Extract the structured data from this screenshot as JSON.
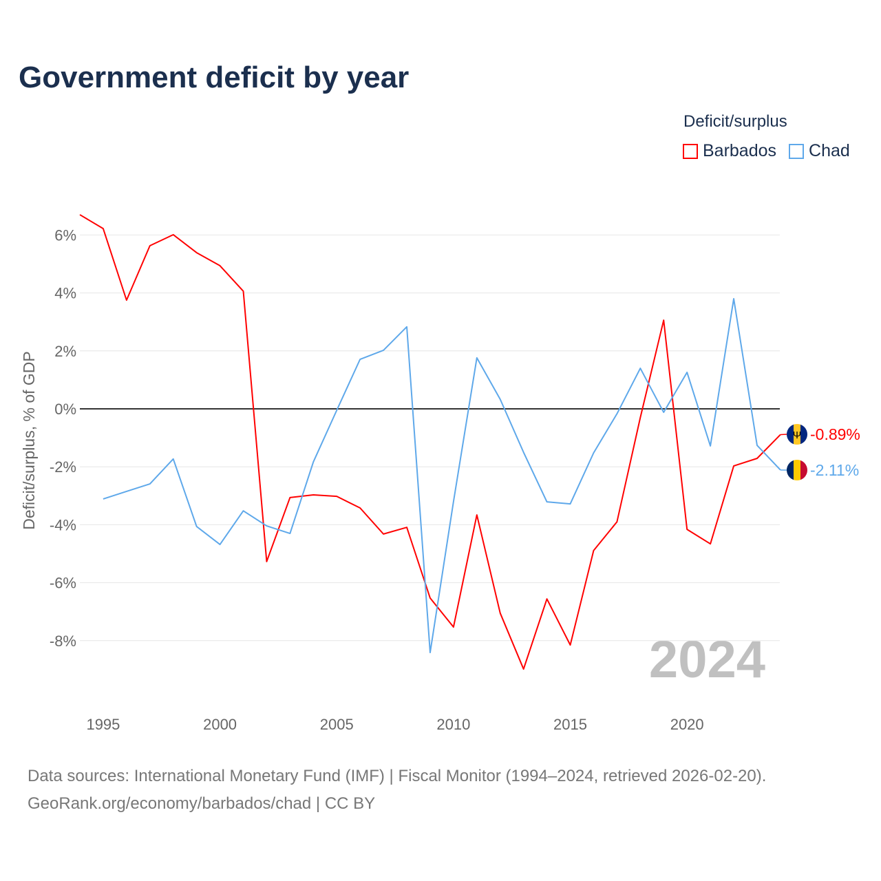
{
  "chart_data": {
    "type": "line",
    "title": "Government deficit by year",
    "ylabel": "Deficit/surplus, % of GDP",
    "xlabel": "",
    "legend_title": "Deficit/surplus",
    "legend_placement": "top-right",
    "ylim": [
      -10,
      7
    ],
    "xlim": [
      1994,
      2024
    ],
    "yticks": [
      6,
      4,
      2,
      0,
      -2,
      -4,
      -6,
      -8
    ],
    "ytick_labels": [
      "6%",
      "4%",
      "2%",
      "0%",
      "-2%",
      "-4%",
      "-6%",
      "-8%"
    ],
    "xticks": [
      1995,
      2000,
      2005,
      2010,
      2015,
      2020
    ],
    "xtick_labels": [
      "1995",
      "2000",
      "2005",
      "2010",
      "2015",
      "2020"
    ],
    "grid": true,
    "year_watermark": "2024",
    "series": [
      {
        "name": "Barbados",
        "color": "#ff0000",
        "end_label": "-0.89%",
        "x": [
          1994,
          1995,
          1996,
          1997,
          1998,
          1999,
          2000,
          2001,
          2002,
          2003,
          2004,
          2005,
          2006,
          2007,
          2008,
          2009,
          2010,
          2011,
          2012,
          2013,
          2014,
          2015,
          2016,
          2017,
          2018,
          2019,
          2020,
          2021,
          2022,
          2023,
          2024
        ],
        "values": [
          6.7,
          6.22,
          3.75,
          5.63,
          6.01,
          5.39,
          4.94,
          4.06,
          -5.27,
          -3.06,
          -2.97,
          -3.02,
          -3.42,
          -4.32,
          -4.09,
          -6.53,
          -7.53,
          -3.66,
          -7.05,
          -8.98,
          -6.56,
          -8.15,
          -4.89,
          -3.9,
          -0.3,
          3.06,
          -4.16,
          -4.66,
          -1.97,
          -1.71,
          -0.89
        ]
      },
      {
        "name": "Chad",
        "color": "#5ea8ea",
        "end_label": "-2.11%",
        "x": [
          1995,
          1996,
          1997,
          1998,
          1999,
          2000,
          2001,
          2002,
          2003,
          2004,
          2005,
          2006,
          2007,
          2008,
          2009,
          2010,
          2011,
          2012,
          2013,
          2014,
          2015,
          2016,
          2017,
          2018,
          2019,
          2020,
          2021,
          2022,
          2023,
          2024
        ],
        "values": [
          -3.11,
          -2.85,
          -2.59,
          -1.73,
          -4.06,
          -4.68,
          -3.52,
          -4.04,
          -4.3,
          -1.83,
          -0.05,
          1.71,
          2.02,
          2.83,
          -8.41,
          -3.2,
          1.76,
          0.33,
          -1.5,
          -3.21,
          -3.28,
          -1.52,
          -0.17,
          1.4,
          -0.12,
          1.26,
          -1.28,
          3.8,
          -1.26,
          -2.11
        ]
      }
    ]
  },
  "source_line1": "Data sources: International Monetary Fund (IMF) | Fiscal Monitor (1994–2024, retrieved 2026-02-20).",
  "source_line2": "GeoRank.org/economy/barbados/chad | CC BY"
}
